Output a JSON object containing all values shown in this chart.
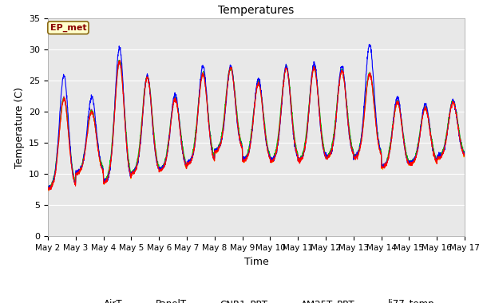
{
  "title": "Temperatures",
  "xlabel": "Time",
  "ylabel": "Temperature (C)",
  "ylim": [
    0,
    35
  ],
  "yticks": [
    0,
    5,
    10,
    15,
    20,
    25,
    30,
    35
  ],
  "x_labels": [
    "May 2",
    "May 3",
    "May 4",
    "May 5",
    "May 6",
    "May 7",
    "May 8",
    "May 9",
    "May 10",
    "May 11",
    "May 12",
    "May 13",
    "May 14",
    "May 15",
    "May 16",
    "May 17"
  ],
  "annotation_text": "EP_met",
  "annotation_bg": "#FFFFCC",
  "annotation_border": "#8B6914",
  "annotation_text_color": "#8B0000",
  "series_colors": {
    "AirT": "#FF0000",
    "PanelT": "#0000FF",
    "CNR1_PRT": "#00CC00",
    "AM25T_PRT": "#FFA500",
    "li77_temp": "#CC00CC"
  },
  "bg_color": "#E8E8E8",
  "grid_color": "#FFFFFF",
  "n_days": 15,
  "pts_per_day": 144,
  "base_temps": [
    7.5,
    10.0,
    8.5,
    10.0,
    10.5,
    11.5,
    13.5,
    12.0,
    12.0,
    12.0,
    12.5,
    12.5,
    11.0,
    11.5,
    12.5
  ],
  "peak_temps_air": [
    22.0,
    20.0,
    28.0,
    25.5,
    22.0,
    26.0,
    27.0,
    24.5,
    27.0,
    27.0,
    26.5,
    26.0,
    21.5,
    20.5,
    21.5
  ],
  "peak_temps_panel": [
    25.5,
    22.0,
    30.0,
    25.5,
    22.5,
    27.0,
    27.0,
    25.0,
    27.0,
    27.5,
    27.0,
    30.5,
    22.0,
    21.0,
    21.5
  ]
}
